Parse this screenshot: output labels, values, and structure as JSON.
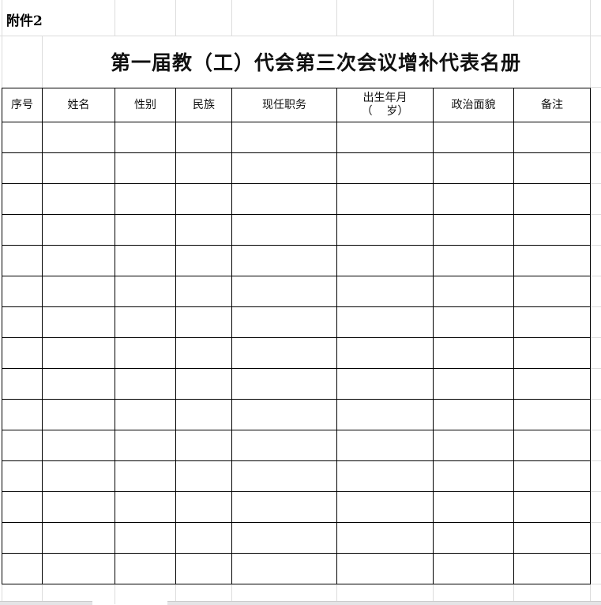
{
  "attachment_label": "附件2",
  "title": "第一届教（工）代会第三次会议增补代表名册",
  "table": {
    "headers": [
      "序号",
      "姓名",
      "性别",
      "民族",
      "现任职务",
      "出生年月",
      "政治面貌",
      "备注"
    ],
    "birth_sub": "（    岁）",
    "rows": [
      [
        "",
        "",
        "",
        "",
        "",
        "",
        "",
        ""
      ],
      [
        "",
        "",
        "",
        "",
        "",
        "",
        "",
        ""
      ],
      [
        "",
        "",
        "",
        "",
        "",
        "",
        "",
        ""
      ],
      [
        "",
        "",
        "",
        "",
        "",
        "",
        "",
        ""
      ],
      [
        "",
        "",
        "",
        "",
        "",
        "",
        "",
        ""
      ],
      [
        "",
        "",
        "",
        "",
        "",
        "",
        "",
        ""
      ],
      [
        "",
        "",
        "",
        "",
        "",
        "",
        "",
        ""
      ],
      [
        "",
        "",
        "",
        "",
        "",
        "",
        "",
        ""
      ],
      [
        "",
        "",
        "",
        "",
        "",
        "",
        "",
        ""
      ],
      [
        "",
        "",
        "",
        "",
        "",
        "",
        "",
        ""
      ],
      [
        "",
        "",
        "",
        "",
        "",
        "",
        "",
        ""
      ],
      [
        "",
        "",
        "",
        "",
        "",
        "",
        "",
        ""
      ],
      [
        "",
        "",
        "",
        "",
        "",
        "",
        "",
        ""
      ],
      [
        "",
        "",
        "",
        "",
        "",
        "",
        "",
        ""
      ],
      [
        "",
        "",
        "",
        "",
        "",
        "",
        "",
        ""
      ]
    ]
  },
  "colors": {
    "border": "#000000",
    "gridline": "#dcdcdc"
  }
}
